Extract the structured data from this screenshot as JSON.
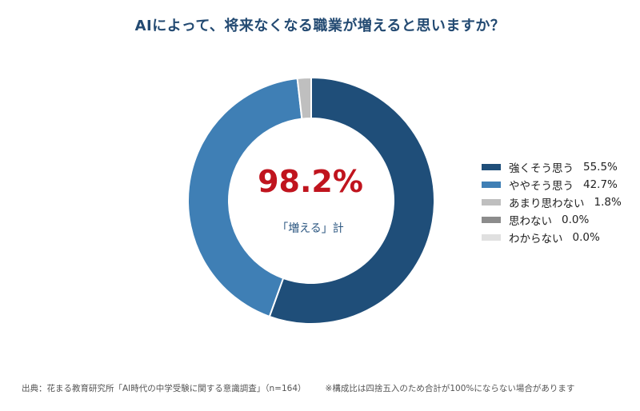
{
  "title": "AIによって、将来なくなる職業が増えると思いますか？",
  "center": {
    "value": "98.2%",
    "label": "「増える」計"
  },
  "chart_data": {
    "type": "pie",
    "title": "AIによって、将来なくなる職業が増えると思いますか？",
    "categories": [
      "強くそう思う",
      "ややそう思う",
      "あまり思わない",
      "思わない",
      "わからない"
    ],
    "values": [
      55.5,
      42.7,
      1.8,
      0.0,
      0.0
    ],
    "labels": [
      "55.5%",
      "42.7%",
      "1.8%",
      "0.0%",
      "0.0%"
    ],
    "colors": [
      "#1f4e79",
      "#3f7fb5",
      "#bfbfbf",
      "#8c8c8c",
      "#e0e0e0"
    ],
    "legend_position": "right",
    "style": "donut"
  },
  "footer": {
    "source": "出典：花まる教育研究所「AI時代の中学受験に関する意識調査」（n=164）",
    "note": "※構成比は四捨五入のため合計が100%にならない場合があります"
  }
}
